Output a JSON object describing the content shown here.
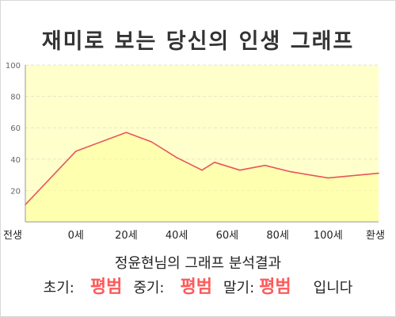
{
  "title": "재미로 보는 당신의 인생 그래프",
  "summary": {
    "heading": "정윤현님의 그래프 분석결과",
    "early_label": "초기:",
    "early_value": "평범",
    "mid_label": "중기:",
    "mid_value": "평범",
    "late_label": "말기:",
    "late_value": "평범",
    "ending": "입니다"
  },
  "colors": {
    "line": "#e8555a",
    "fill": "#ffffcc",
    "highlight": "#ff5a5a"
  },
  "chart_data": {
    "type": "area",
    "title": "재미로 보는 당신의 인생 그래프",
    "xlabel": "",
    "ylabel": "",
    "ylim": [
      0,
      100
    ],
    "yticks": [
      20,
      40,
      60,
      80,
      100
    ],
    "x_ticks": [
      "전생",
      "0세",
      "20세",
      "40세",
      "60세",
      "80세",
      "100세",
      "환생"
    ],
    "x_tick_positions": [
      -20,
      0,
      20,
      40,
      60,
      80,
      100,
      120
    ],
    "xlim": [
      -20,
      120
    ],
    "grid": true,
    "legend": "none",
    "series": [
      {
        "x": [
          -20,
          0,
          20,
          30,
          40,
          50,
          55,
          65,
          75,
          85,
          100,
          120
        ],
        "y": [
          11,
          45,
          57,
          51,
          41,
          33,
          38,
          33,
          36,
          32,
          28,
          31
        ]
      }
    ]
  }
}
